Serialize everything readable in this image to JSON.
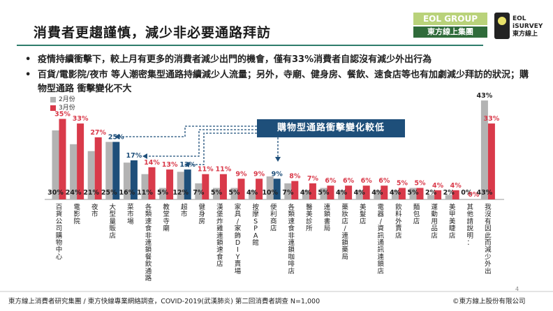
{
  "slide": {
    "title": "消費者更趨謹慎，減少非必要通路拜訪",
    "bullets": [
      "疫情持續衝擊下，較上月有更多的消費者減少出門的機會，僅有33%消費者自認沒有減少外出行為",
      "百貨/電影院/夜市 等人潮密集型通路持續減少人流量；另外，寺廟、健身房、餐飲、速食店等也有加劇減少拜訪的狀況；購物型通路 衝擊變化不大"
    ],
    "callout": "購物型通路衝擊變化較低",
    "footer": "東方線上消費者研究集團 / 東方快線專業網絡調查，COVID-2019(武漢肺炎) 第二回消費者調查 N=1,000",
    "copyright": "©東方線上股份有限公司",
    "page_number": "4"
  },
  "logos": {
    "eol_top": "EOL GROUP",
    "eol_bottom": "東方線上集團",
    "survey_line1": "EOL",
    "survey_line2": "iSURVEY",
    "survey_line3": "東方線上"
  },
  "colors": {
    "feb": "#b3b3b3",
    "mar": "#d93a4a",
    "highlight": "#1e4f7a"
  },
  "chart_data": {
    "type": "bar",
    "legend": [
      "2月份",
      "3月份"
    ],
    "categories": [
      "百貨公司 購物中心",
      "電影院",
      "夜市",
      "大型量販店",
      "菜市場",
      "各類速食 非連鎖餐飲通路",
      "教堂 寺廟",
      "超市",
      "健身房",
      "漢堡炸雞連鎖速食店",
      "家具/家飾DIY 賣場",
      "按摩SPA館",
      "便利商店",
      "各類速食 非連鎖咖啡店",
      "醫美診所",
      "連鎖書局",
      "藥妝店/連鎖藥局",
      "美髮店",
      "電器/資訊 通訊連鎖店",
      "飲料外賣店",
      "麵包店",
      "運動用品店",
      "美甲美睫店",
      "其他 請說明：",
      "我沒有因此而減少外出"
    ],
    "series": [
      {
        "name": "2月份",
        "values": [
          30,
          24,
          21,
          25,
          16,
          11,
          5,
          12,
          7,
          5,
          5,
          4,
          10,
          7,
          4,
          5,
          4,
          4,
          4,
          4,
          5,
          2,
          2,
          0,
          43
        ]
      },
      {
        "name": "3月份",
        "values": [
          35,
          33,
          27,
          25,
          17,
          14,
          13,
          13,
          11,
          11,
          9,
          9,
          9,
          8,
          7,
          6,
          6,
          6,
          6,
          5,
          5,
          4,
          4,
          0,
          33
        ]
      }
    ],
    "highlight": [
      3,
      4,
      7,
      12
    ],
    "ylim": [
      0,
      45
    ],
    "value_suffix": "%"
  }
}
